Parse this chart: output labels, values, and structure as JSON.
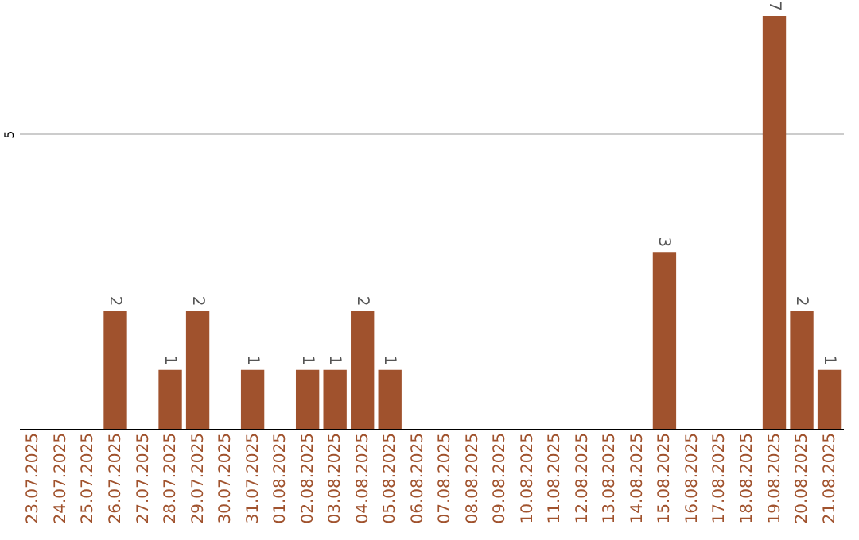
{
  "chart_data": {
    "type": "bar",
    "categories": [
      "23.07.2025",
      "24.07.2025",
      "25.07.2025",
      "26.07.2025",
      "27.07.2025",
      "28.07.2025",
      "29.07.2025",
      "30.07.2025",
      "31.07.2025",
      "01.08.2025",
      "02.08.2025",
      "03.08.2025",
      "04.08.2025",
      "05.08.2025",
      "06.08.2025",
      "07.08.2025",
      "08.08.2025",
      "09.08.2025",
      "10.08.2025",
      "11.08.2025",
      "12.08.2025",
      "13.08.2025",
      "14.08.2025",
      "15.08.2025",
      "16.08.2025",
      "17.08.2025",
      "18.08.2025",
      "19.08.2025",
      "20.08.2025",
      "21.08.2025"
    ],
    "values": [
      0,
      0,
      0,
      2,
      0,
      1,
      2,
      0,
      1,
      0,
      1,
      1,
      2,
      1,
      0,
      0,
      0,
      0,
      0,
      0,
      0,
      0,
      0,
      3,
      0,
      0,
      0,
      7,
      2,
      1
    ],
    "value_labels": [
      null,
      null,
      null,
      "2",
      null,
      "1",
      "2",
      null,
      "1",
      null,
      "1",
      "1",
      "2",
      "1",
      null,
      null,
      null,
      null,
      null,
      null,
      null,
      null,
      null,
      "3",
      null,
      null,
      null,
      "7",
      "2",
      "1"
    ],
    "color": "#a0522d",
    "ylim": [
      0,
      7
    ],
    "yticks": [
      5
    ],
    "grid": "y"
  }
}
